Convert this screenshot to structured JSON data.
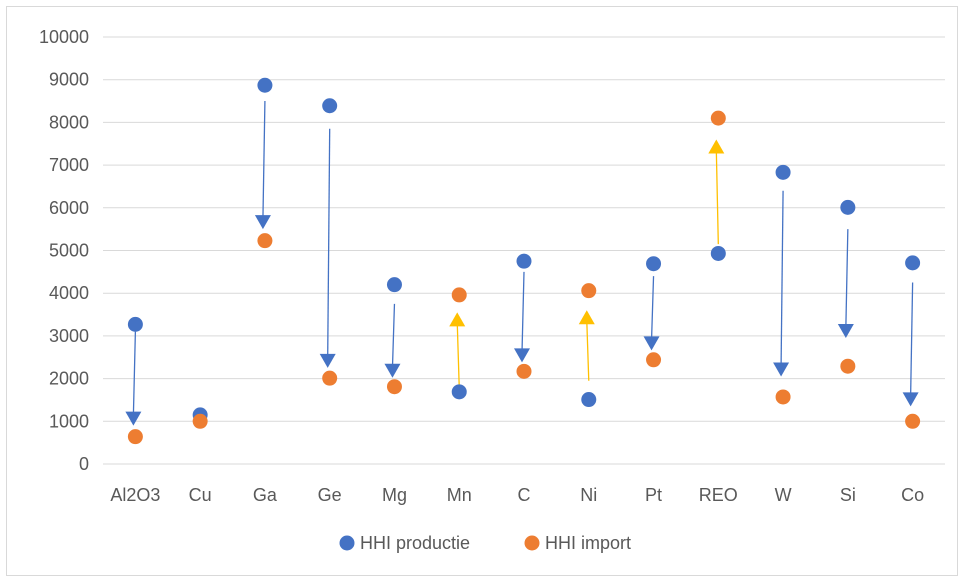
{
  "chart_data": {
    "type": "scatter",
    "title": "",
    "xlabel": "",
    "ylabel": "",
    "ylim": [
      0,
      10000
    ],
    "yticks": [
      "0",
      "1000",
      "2000",
      "3000",
      "4000",
      "5000",
      "6000",
      "7000",
      "8000",
      "9000",
      "10000"
    ],
    "grid": true,
    "legend_position": "bottom",
    "categories": [
      "Al2O3",
      "Cu",
      "Ga",
      "Ge",
      "Mg",
      "Mn",
      "C",
      "Ni",
      "Pt",
      "REO",
      "W",
      "Si",
      "Co"
    ],
    "series": [
      {
        "name": "HHI productie",
        "color": "#4472C4",
        "values": [
          3270,
          1150,
          8870,
          8390,
          4200,
          1690,
          4750,
          1510,
          4690,
          4930,
          6830,
          6010,
          4710
        ]
      },
      {
        "name": "HHI import",
        "color": "#ED7D31",
        "values": [
          640,
          1000,
          5230,
          2010,
          1810,
          3960,
          2170,
          4060,
          2440,
          8100,
          1570,
          2290,
          1000
        ]
      }
    ],
    "annotations": {
      "type": "arrows",
      "description_colors": {
        "decrease": "#4472C4",
        "increase": "#FFC000"
      },
      "arrows": [
        {
          "category": "Al2O3",
          "from": 3100,
          "to": 900,
          "color": "#4472C4"
        },
        {
          "category": "Ga",
          "from": 8500,
          "to": 5500,
          "color": "#4472C4"
        },
        {
          "category": "Ge",
          "from": 7850,
          "to": 2250,
          "color": "#4472C4"
        },
        {
          "category": "Mg",
          "from": 3750,
          "to": 2020,
          "color": "#4472C4"
        },
        {
          "category": "Mn",
          "from": 1800,
          "to": 3550,
          "color": "#FFC000"
        },
        {
          "category": "C",
          "from": 4500,
          "to": 2380,
          "color": "#4472C4"
        },
        {
          "category": "Ni",
          "from": 1950,
          "to": 3600,
          "color": "#FFC000"
        },
        {
          "category": "Pt",
          "from": 4400,
          "to": 2660,
          "color": "#4472C4"
        },
        {
          "category": "REO",
          "from": 5150,
          "to": 7600,
          "color": "#FFC000"
        },
        {
          "category": "W",
          "from": 6400,
          "to": 2050,
          "color": "#4472C4"
        },
        {
          "category": "Si",
          "from": 5500,
          "to": 2950,
          "color": "#4472C4"
        },
        {
          "category": "Co",
          "from": 4250,
          "to": 1350,
          "color": "#4472C4"
        }
      ]
    }
  }
}
